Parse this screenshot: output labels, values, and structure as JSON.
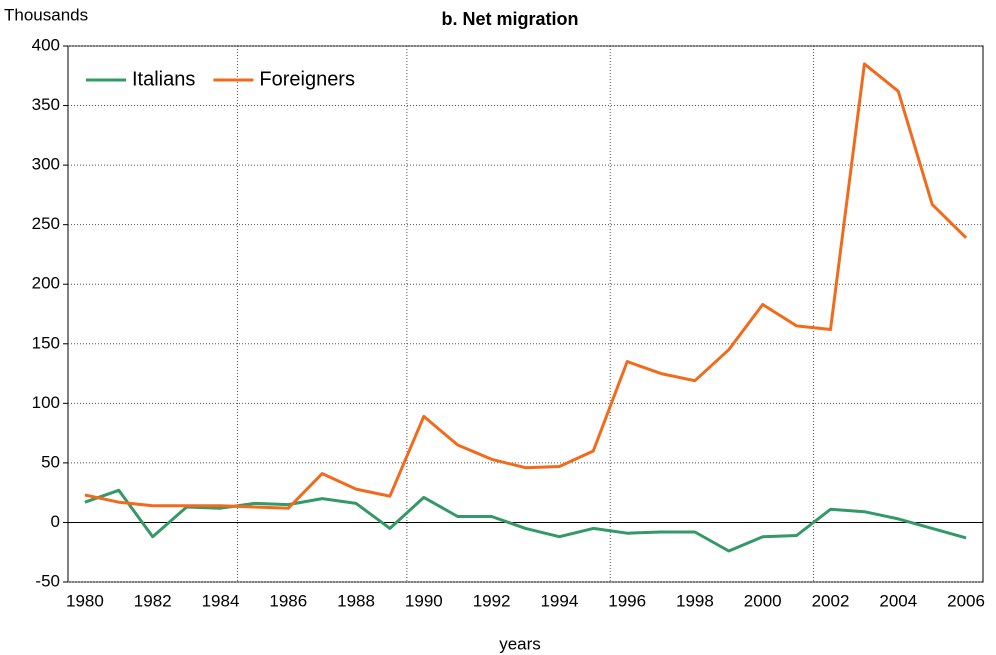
{
  "chart_data": {
    "type": "line",
    "title": "b. Net migration",
    "y_label": "Thousands",
    "x_label": "years",
    "categories": [
      "1980",
      null,
      "1982",
      null,
      "1984",
      null,
      "1986",
      null,
      "1988",
      null,
      "1990",
      null,
      "1992",
      null,
      "1994",
      null,
      "1996",
      null,
      "1998",
      null,
      "2000",
      null,
      "2002",
      null,
      "2004",
      null,
      "2006"
    ],
    "series": [
      {
        "name": "Italians",
        "color": "#339966",
        "values": [
          17,
          27,
          -12,
          13,
          12,
          16,
          15,
          20,
          16,
          -5,
          21,
          5,
          5,
          -5,
          -12,
          -5,
          -9,
          -8,
          -8,
          -24,
          -12,
          -11,
          11,
          9,
          3,
          -5,
          -13
        ]
      },
      {
        "name": "Foreigners",
        "color": "#f26b1d",
        "values": [
          23,
          17,
          14,
          14,
          14,
          13,
          12,
          41,
          28,
          22,
          89,
          65,
          53,
          46,
          47,
          60,
          135,
          125,
          119,
          145,
          183,
          165,
          162,
          385,
          362,
          267,
          239
        ]
      }
    ],
    "ylim": [
      -50,
      400
    ],
    "yticks": [
      -50,
      0,
      50,
      100,
      150,
      200,
      250,
      300,
      350,
      400
    ],
    "grid": true,
    "legend": "top-left"
  }
}
